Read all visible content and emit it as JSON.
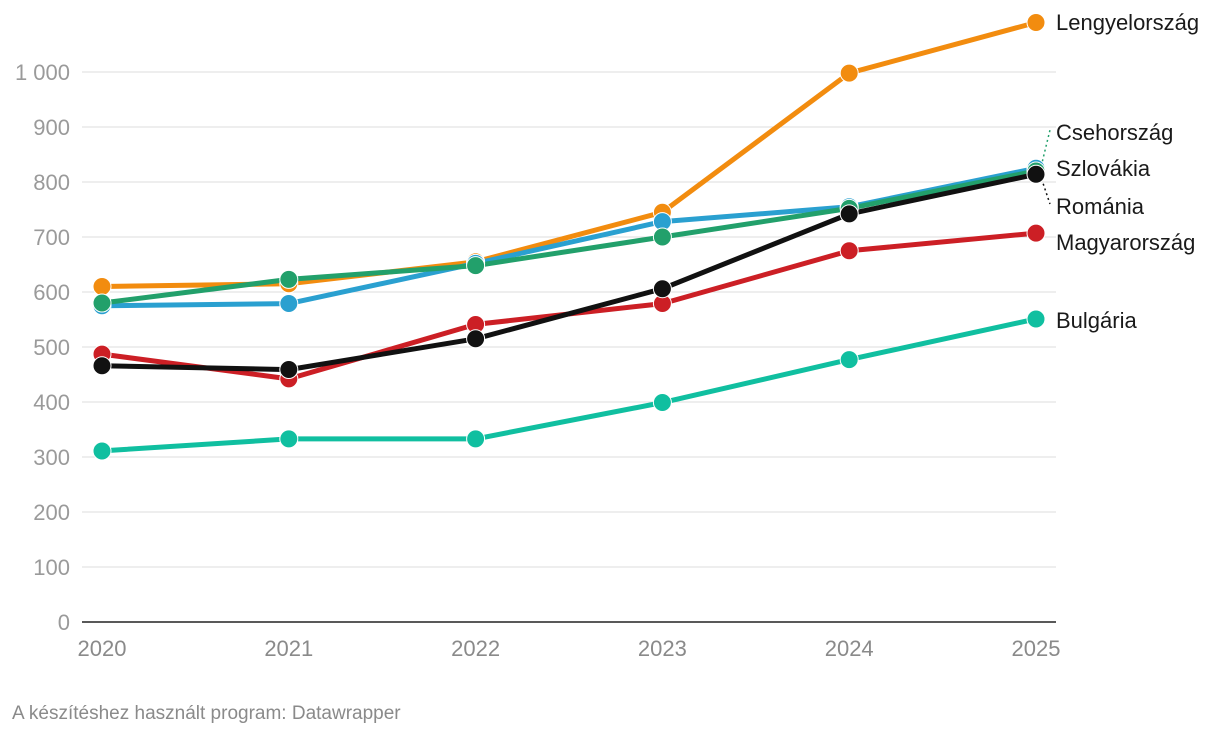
{
  "chart_data": {
    "type": "line",
    "title": "",
    "xlabel": "",
    "ylabel": "",
    "x": [
      "2020",
      "2021",
      "2022",
      "2023",
      "2024",
      "2025"
    ],
    "ylim": [
      0,
      1000
    ],
    "yticks": [
      0,
      100,
      200,
      300,
      400,
      500,
      600,
      700,
      800,
      900,
      1000
    ],
    "ytick_labels": [
      "0",
      "100",
      "200",
      "300",
      "400",
      "500",
      "600",
      "700",
      "800",
      "900",
      "1 000"
    ],
    "grid": true,
    "legend": "direct labels at line ends (right)",
    "series": [
      {
        "name": "Lengyelország",
        "color": "#f28c0f",
        "values": [
          610,
          615,
          655,
          745,
          998,
          1090
        ]
      },
      {
        "name": "Csehország",
        "color": "#22a06b",
        "values": [
          580,
          623,
          648,
          700,
          752,
          820
        ]
      },
      {
        "name": "Szlovákia",
        "color": "#2aa0d0",
        "values": [
          575,
          579,
          652,
          728,
          755,
          825
        ]
      },
      {
        "name": "Románia",
        "color": "#111111",
        "values": [
          466,
          459,
          515,
          606,
          742,
          814
        ]
      },
      {
        "name": "Magyarország",
        "color": "#cc1f25",
        "values": [
          487,
          442,
          541,
          579,
          675,
          707
        ]
      },
      {
        "name": "Bulgária",
        "color": "#10bfa0",
        "values": [
          311,
          333,
          333,
          399,
          477,
          551
        ]
      }
    ]
  },
  "footer": {
    "credit": "A készítéshez használt program: Datawrapper"
  }
}
